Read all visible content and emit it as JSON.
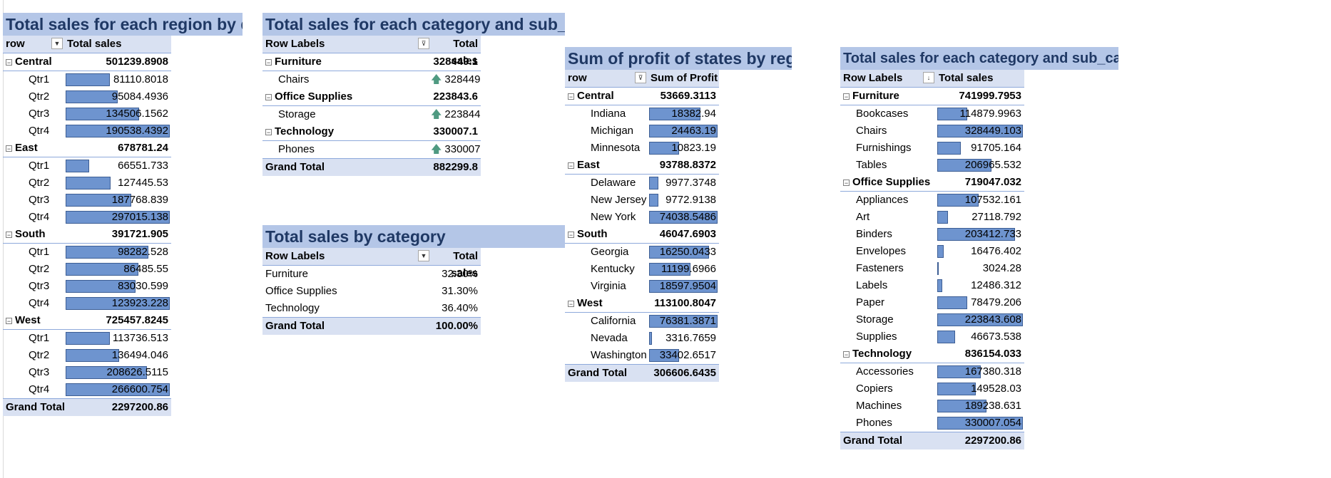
{
  "region_quarter": {
    "title": "Total sales for each region by quarter",
    "col1": "row",
    "col2": "Total sales",
    "groups": [
      {
        "label": "Central",
        "total": "501239.8908",
        "rows": [
          {
            "label": "Qtr1",
            "value": "81110.8018",
            "fraction": 0.426
          },
          {
            "label": "Qtr2",
            "value": "95084.4936",
            "fraction": 0.499
          },
          {
            "label": "Qtr3",
            "value": "134506.1562",
            "fraction": 0.706
          },
          {
            "label": "Qtr4",
            "value": "190538.4392",
            "fraction": 1.0
          }
        ]
      },
      {
        "label": "East",
        "total": "678781.24",
        "rows": [
          {
            "label": "Qtr1",
            "value": "66551.733",
            "fraction": 0.224
          },
          {
            "label": "Qtr2",
            "value": "127445.53",
            "fraction": 0.429
          },
          {
            "label": "Qtr3",
            "value": "187768.839",
            "fraction": 0.632
          },
          {
            "label": "Qtr4",
            "value": "297015.138",
            "fraction": 1.0
          }
        ]
      },
      {
        "label": "South",
        "total": "391721.905",
        "rows": [
          {
            "label": "Qtr1",
            "value": "98282.528",
            "fraction": 0.793
          },
          {
            "label": "Qtr2",
            "value": "86485.55",
            "fraction": 0.698
          },
          {
            "label": "Qtr3",
            "value": "83030.599",
            "fraction": 0.67
          },
          {
            "label": "Qtr4",
            "value": "123923.228",
            "fraction": 1.0
          }
        ]
      },
      {
        "label": "West",
        "total": "725457.8245",
        "rows": [
          {
            "label": "Qtr1",
            "value": "113736.513",
            "fraction": 0.427
          },
          {
            "label": "Qtr2",
            "value": "136494.046",
            "fraction": 0.512
          },
          {
            "label": "Qtr3",
            "value": "208626.5115",
            "fraction": 0.783
          },
          {
            "label": "Qtr4",
            "value": "266600.754",
            "fraction": 1.0
          }
        ]
      }
    ],
    "grand_label": "Grand Total",
    "grand_value": "2297200.86"
  },
  "cat_sub_small": {
    "title": "Total sales for each category and sub_category",
    "col1": "Row Labels",
    "col2": "Total sales",
    "groups": [
      {
        "label": "Furniture",
        "total": "328449.1",
        "rows": [
          {
            "label": "Chairs",
            "value": "328449"
          }
        ]
      },
      {
        "label": "Office Supplies",
        "total": "223843.6",
        "rows": [
          {
            "label": "Storage",
            "value": "223844"
          }
        ]
      },
      {
        "label": "Technology",
        "total": "330007.1",
        "rows": [
          {
            "label": "Phones",
            "value": "330007"
          }
        ]
      }
    ],
    "grand_label": "Grand Total",
    "grand_value": "882299.8",
    "arrow_icon": "up-arrow-icon",
    "arrow_color": "#4f9a81"
  },
  "by_category": {
    "title": "Total sales by category",
    "col1": "Row Labels",
    "col2": "Total sales",
    "rows": [
      {
        "label": "Furniture",
        "value": "32.30%"
      },
      {
        "label": "Office Supplies",
        "value": "31.30%"
      },
      {
        "label": "Technology",
        "value": "36.40%"
      }
    ],
    "grand_label": "Grand Total",
    "grand_value": "100.00%"
  },
  "profit_states": {
    "title": "Sum of profit of states by region",
    "col1": "row",
    "col2": "Sum of Profit",
    "groups": [
      {
        "label": "Central",
        "total": "53669.3113",
        "rows": [
          {
            "label": "Indiana",
            "value": "18382.94",
            "fraction": 0.751
          },
          {
            "label": "Michigan",
            "value": "24463.19",
            "fraction": 1.0
          },
          {
            "label": "Minnesota",
            "value": "10823.19",
            "fraction": 0.442
          }
        ]
      },
      {
        "label": "East",
        "total": "93788.8372",
        "rows": [
          {
            "label": "Delaware",
            "value": "9977.3748",
            "fraction": 0.135
          },
          {
            "label": "New Jersey",
            "value": "9772.9138",
            "fraction": 0.132
          },
          {
            "label": "New York",
            "value": "74038.5486",
            "fraction": 1.0
          }
        ]
      },
      {
        "label": "South",
        "total": "46047.6903",
        "rows": [
          {
            "label": "Georgia",
            "value": "16250.0433",
            "fraction": 0.874
          },
          {
            "label": "Kentucky",
            "value": "11199.6966",
            "fraction": 0.602
          },
          {
            "label": "Virginia",
            "value": "18597.9504",
            "fraction": 1.0
          }
        ]
      },
      {
        "label": "West",
        "total": "113100.8047",
        "rows": [
          {
            "label": "California",
            "value": "76381.3871",
            "fraction": 1.0
          },
          {
            "label": "Nevada",
            "value": "3316.7659",
            "fraction": 0.043
          },
          {
            "label": "Washington",
            "value": "33402.6517",
            "fraction": 0.437
          }
        ]
      }
    ],
    "grand_label": "Grand Total",
    "grand_value": "306606.6435"
  },
  "cat_sub_full": {
    "title": "Total sales for each category and sub_category",
    "col1": "Row Labels",
    "col2": "Total sales",
    "groups": [
      {
        "label": "Furniture",
        "total": "741999.7953",
        "rows": [
          {
            "label": "Bookcases",
            "value": "114879.9963",
            "fraction": 0.35
          },
          {
            "label": "Chairs",
            "value": "328449.103",
            "fraction": 1.0
          },
          {
            "label": "Furnishings",
            "value": "91705.164",
            "fraction": 0.279
          },
          {
            "label": "Tables",
            "value": "206965.532",
            "fraction": 0.63
          }
        ]
      },
      {
        "label": "Office Supplies",
        "total": "719047.032",
        "rows": [
          {
            "label": "Appliances",
            "value": "107532.161",
            "fraction": 0.48
          },
          {
            "label": "Art",
            "value": "27118.792",
            "fraction": 0.121
          },
          {
            "label": "Binders",
            "value": "203412.733",
            "fraction": 0.909
          },
          {
            "label": "Envelopes",
            "value": "16476.402",
            "fraction": 0.074
          },
          {
            "label": "Fasteners",
            "value": "3024.28",
            "fraction": 0.014
          },
          {
            "label": "Labels",
            "value": "12486.312",
            "fraction": 0.056
          },
          {
            "label": "Paper",
            "value": "78479.206",
            "fraction": 0.351
          },
          {
            "label": "Storage",
            "value": "223843.608",
            "fraction": 1.0
          },
          {
            "label": "Supplies",
            "value": "46673.538",
            "fraction": 0.209
          }
        ]
      },
      {
        "label": "Technology",
        "total": "836154.033",
        "rows": [
          {
            "label": "Accessories",
            "value": "167380.318",
            "fraction": 0.507
          },
          {
            "label": "Copiers",
            "value": "149528.03",
            "fraction": 0.453
          },
          {
            "label": "Machines",
            "value": "189238.631",
            "fraction": 0.573
          },
          {
            "label": "Phones",
            "value": "330007.054",
            "fraction": 1.0
          }
        ]
      }
    ],
    "grand_label": "Grand Total",
    "grand_value": "2297200.86"
  },
  "colors": {
    "title_fill": "#b4c6e7",
    "title_text": "#1f3864",
    "header_fill": "#d9e1f2",
    "data_bar": "#6e94cf"
  },
  "icons": {
    "collapse": "minus-box-icon",
    "filter_dropdown": "filter-dropdown-icon",
    "dropdown": "chevron-down-icon"
  }
}
